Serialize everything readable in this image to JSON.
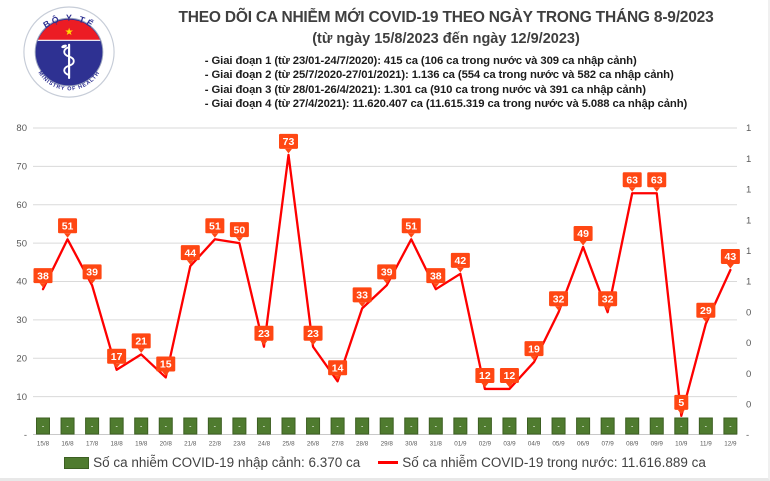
{
  "header": {
    "title": "THEO DÕI CA NHIỄM MỚI COVID-19 THEO NGÀY TRONG THÁNG 8-9/2023",
    "subtitle": "(từ ngày 15/8/2023 đến ngày 12/9/2023)",
    "phases": [
      "- Giai đoạn 1 (từ 23/01-24/7/2020): 415 ca (106 ca trong nước và 309 ca nhập cảnh)",
      "- Giai đoạn 2 (từ 25/7/2020-27/01/2021): 1.136 ca (554 ca trong nước và 582 ca nhập cảnh)",
      "- Giai đoạn 3 (từ 28/01-26/4/2021): 1.301 ca (910 ca trong nước và 391 ca nhập cảnh)",
      "- Giai đoạn 4 (từ 27/4/2021): 11.620.407 ca (11.615.319 ca trong nước và 5.088 ca nhập cảnh)"
    ]
  },
  "logo": {
    "top_text": "BỘ Y TẾ",
    "bottom_text": "MINISTRY OF HEALTH",
    "star": "★"
  },
  "legend": {
    "imported": "Số ca nhiễm COVID-19 nhập cảnh: 6.370 ca",
    "domestic": "Số ca nhiễm COVID-19 trong nước: 11.616.889 ca"
  },
  "colors": {
    "line": "#fe0000",
    "callout_bg": "#ff4713",
    "callout_text": "#ffffff",
    "bar_fill": "#4f7b2f",
    "bar_border": "#3c5f22",
    "grid": "#dadada",
    "axis_line": "#c9c9c9",
    "axis_text": "#595959",
    "title_text": "#3f3f3f",
    "legend_text": "#424242",
    "logo_blue": "#2e3192",
    "logo_red": "#ec1c24",
    "star_yellow": "#ffde00"
  },
  "chart_data": {
    "type": "line+bar",
    "title": "THEO DÕI CA NHIỄM MỚI COVID-19 THEO NGÀY TRONG THÁNG 8-9/2023",
    "categories": [
      "15/8",
      "16/8",
      "17/8",
      "18/8",
      "19/8",
      "20/8",
      "21/8",
      "22/8",
      "23/8",
      "24/8",
      "25/8",
      "26/8",
      "27/8",
      "28/8",
      "29/8",
      "30/8",
      "31/8",
      "01/9",
      "02/9",
      "03/9",
      "04/9",
      "05/9",
      "06/9",
      "07/9",
      "08/9",
      "09/9",
      "10/9",
      "11/9",
      "12/9"
    ],
    "series": [
      {
        "name": "Số ca nhiễm COVID-19 trong nước",
        "type": "line",
        "values": [
          38,
          51,
          39,
          17,
          21,
          15,
          44,
          51,
          50,
          23,
          73,
          23,
          14,
          33,
          39,
          51,
          38,
          42,
          12,
          12,
          19,
          32,
          49,
          32,
          63,
          63,
          5,
          29,
          43
        ]
      },
      {
        "name": "Số ca nhiễm COVID-19 nhập cảnh",
        "type": "bar",
        "values": [
          0,
          0,
          0,
          0,
          0,
          0,
          0,
          0,
          0,
          0,
          0,
          0,
          0,
          0,
          0,
          0,
          0,
          0,
          0,
          0,
          0,
          0,
          0,
          0,
          0,
          0,
          0,
          0,
          0
        ],
        "value_label": "-"
      }
    ],
    "ylabel": "",
    "xlabel": "",
    "ylim": [
      0,
      80
    ],
    "grid": true,
    "legend_position": "bottom",
    "left_axis": {
      "ticks": [
        "80",
        "70",
        "60",
        "50",
        "40",
        "30",
        "20",
        "10",
        "-"
      ],
      "tick_values": [
        80,
        70,
        60,
        50,
        40,
        30,
        20,
        10,
        0
      ]
    },
    "right_axis": {
      "ticks": [
        "1",
        "1",
        "1",
        "1",
        "1",
        "1",
        "0",
        "0",
        "0",
        "0",
        "-"
      ]
    }
  }
}
